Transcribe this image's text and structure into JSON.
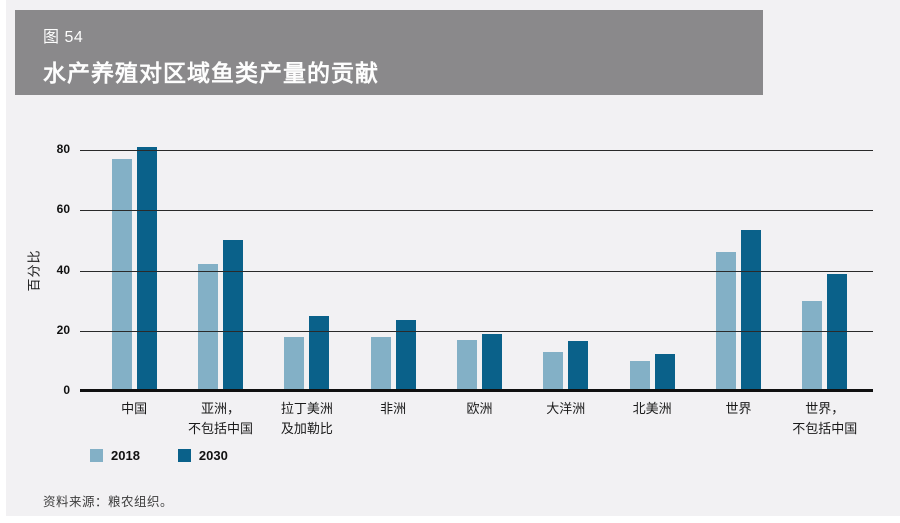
{
  "page": {
    "bg": "#f2f1f3"
  },
  "header": {
    "figure_label": "图 54",
    "title": "水产养殖对区域鱼类产量的贡献",
    "bg": "#8a898b"
  },
  "chart_data": {
    "type": "bar",
    "title": "水产养殖对区域鱼类产量的贡献",
    "categories": [
      "中国",
      "亚洲，\n不包括中国",
      "拉丁美洲\n及加勒比",
      "非洲",
      "欧洲",
      "大洋洲",
      "北美洲",
      "世界",
      "世界，\n不包括中国"
    ],
    "series": [
      {
        "name": "2018",
        "color": "#83b0c6",
        "values": [
          77,
          42,
          18,
          18,
          17,
          13,
          10,
          46,
          30
        ]
      },
      {
        "name": "2030",
        "color": "#0a618a",
        "values": [
          81,
          50,
          25,
          23.5,
          19,
          16.5,
          12.3,
          53.5,
          39
        ]
      }
    ],
    "xlabel": "",
    "ylabel": "百分比",
    "ylim": [
      0,
      80
    ],
    "yticks": [
      0,
      20,
      40,
      60,
      80
    ],
    "grid": true,
    "legend_position": "bottom-left"
  },
  "source": {
    "text": "资料来源：粮农组织。"
  }
}
